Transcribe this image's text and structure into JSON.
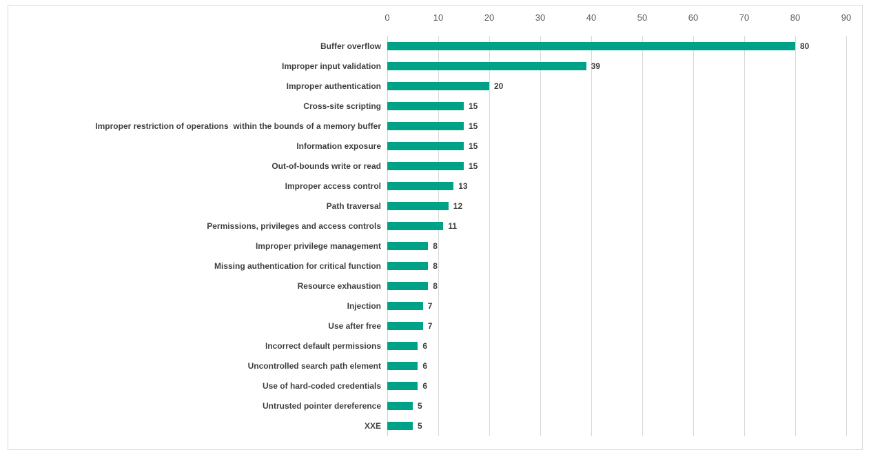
{
  "chart_data": {
    "type": "bar",
    "orientation": "horizontal",
    "title": "",
    "xlabel": "",
    "ylabel": "",
    "categories": [
      "Buffer overflow",
      "Improper input validation",
      "Improper authentication",
      "Cross-site scripting",
      "Improper restriction of operations  within the bounds of a memory buffer",
      "Information exposure",
      "Out-of-bounds write or read",
      "Improper access control",
      "Path traversal",
      "Permissions, privileges and access controls",
      "Improper privilege management",
      "Missing authentication for critical function",
      "Resource exhaustion",
      "Injection",
      "Use after free",
      "Incorrect default permissions",
      "Uncontrolled search path element",
      "Use of hard-coded credentials",
      "Untrusted pointer dereference",
      "XXE"
    ],
    "values": [
      80,
      39,
      20,
      15,
      15,
      15,
      15,
      13,
      12,
      11,
      8,
      8,
      8,
      7,
      7,
      6,
      6,
      6,
      5,
      5
    ],
    "x_ticks": [
      0,
      10,
      20,
      30,
      40,
      50,
      60,
      70,
      80,
      90
    ],
    "xlim": [
      0,
      90
    ],
    "grid": true,
    "legend": false,
    "value_labels": true,
    "colors": {
      "bar": "#00a287",
      "gridline": "#d9d9d9",
      "axis_line": "#cfcfcf",
      "tick_text": "#595959",
      "category_text": "#3f3f3f",
      "value_text": "#404040",
      "frame_border": "#d9d9d9",
      "background": "#ffffff"
    }
  }
}
